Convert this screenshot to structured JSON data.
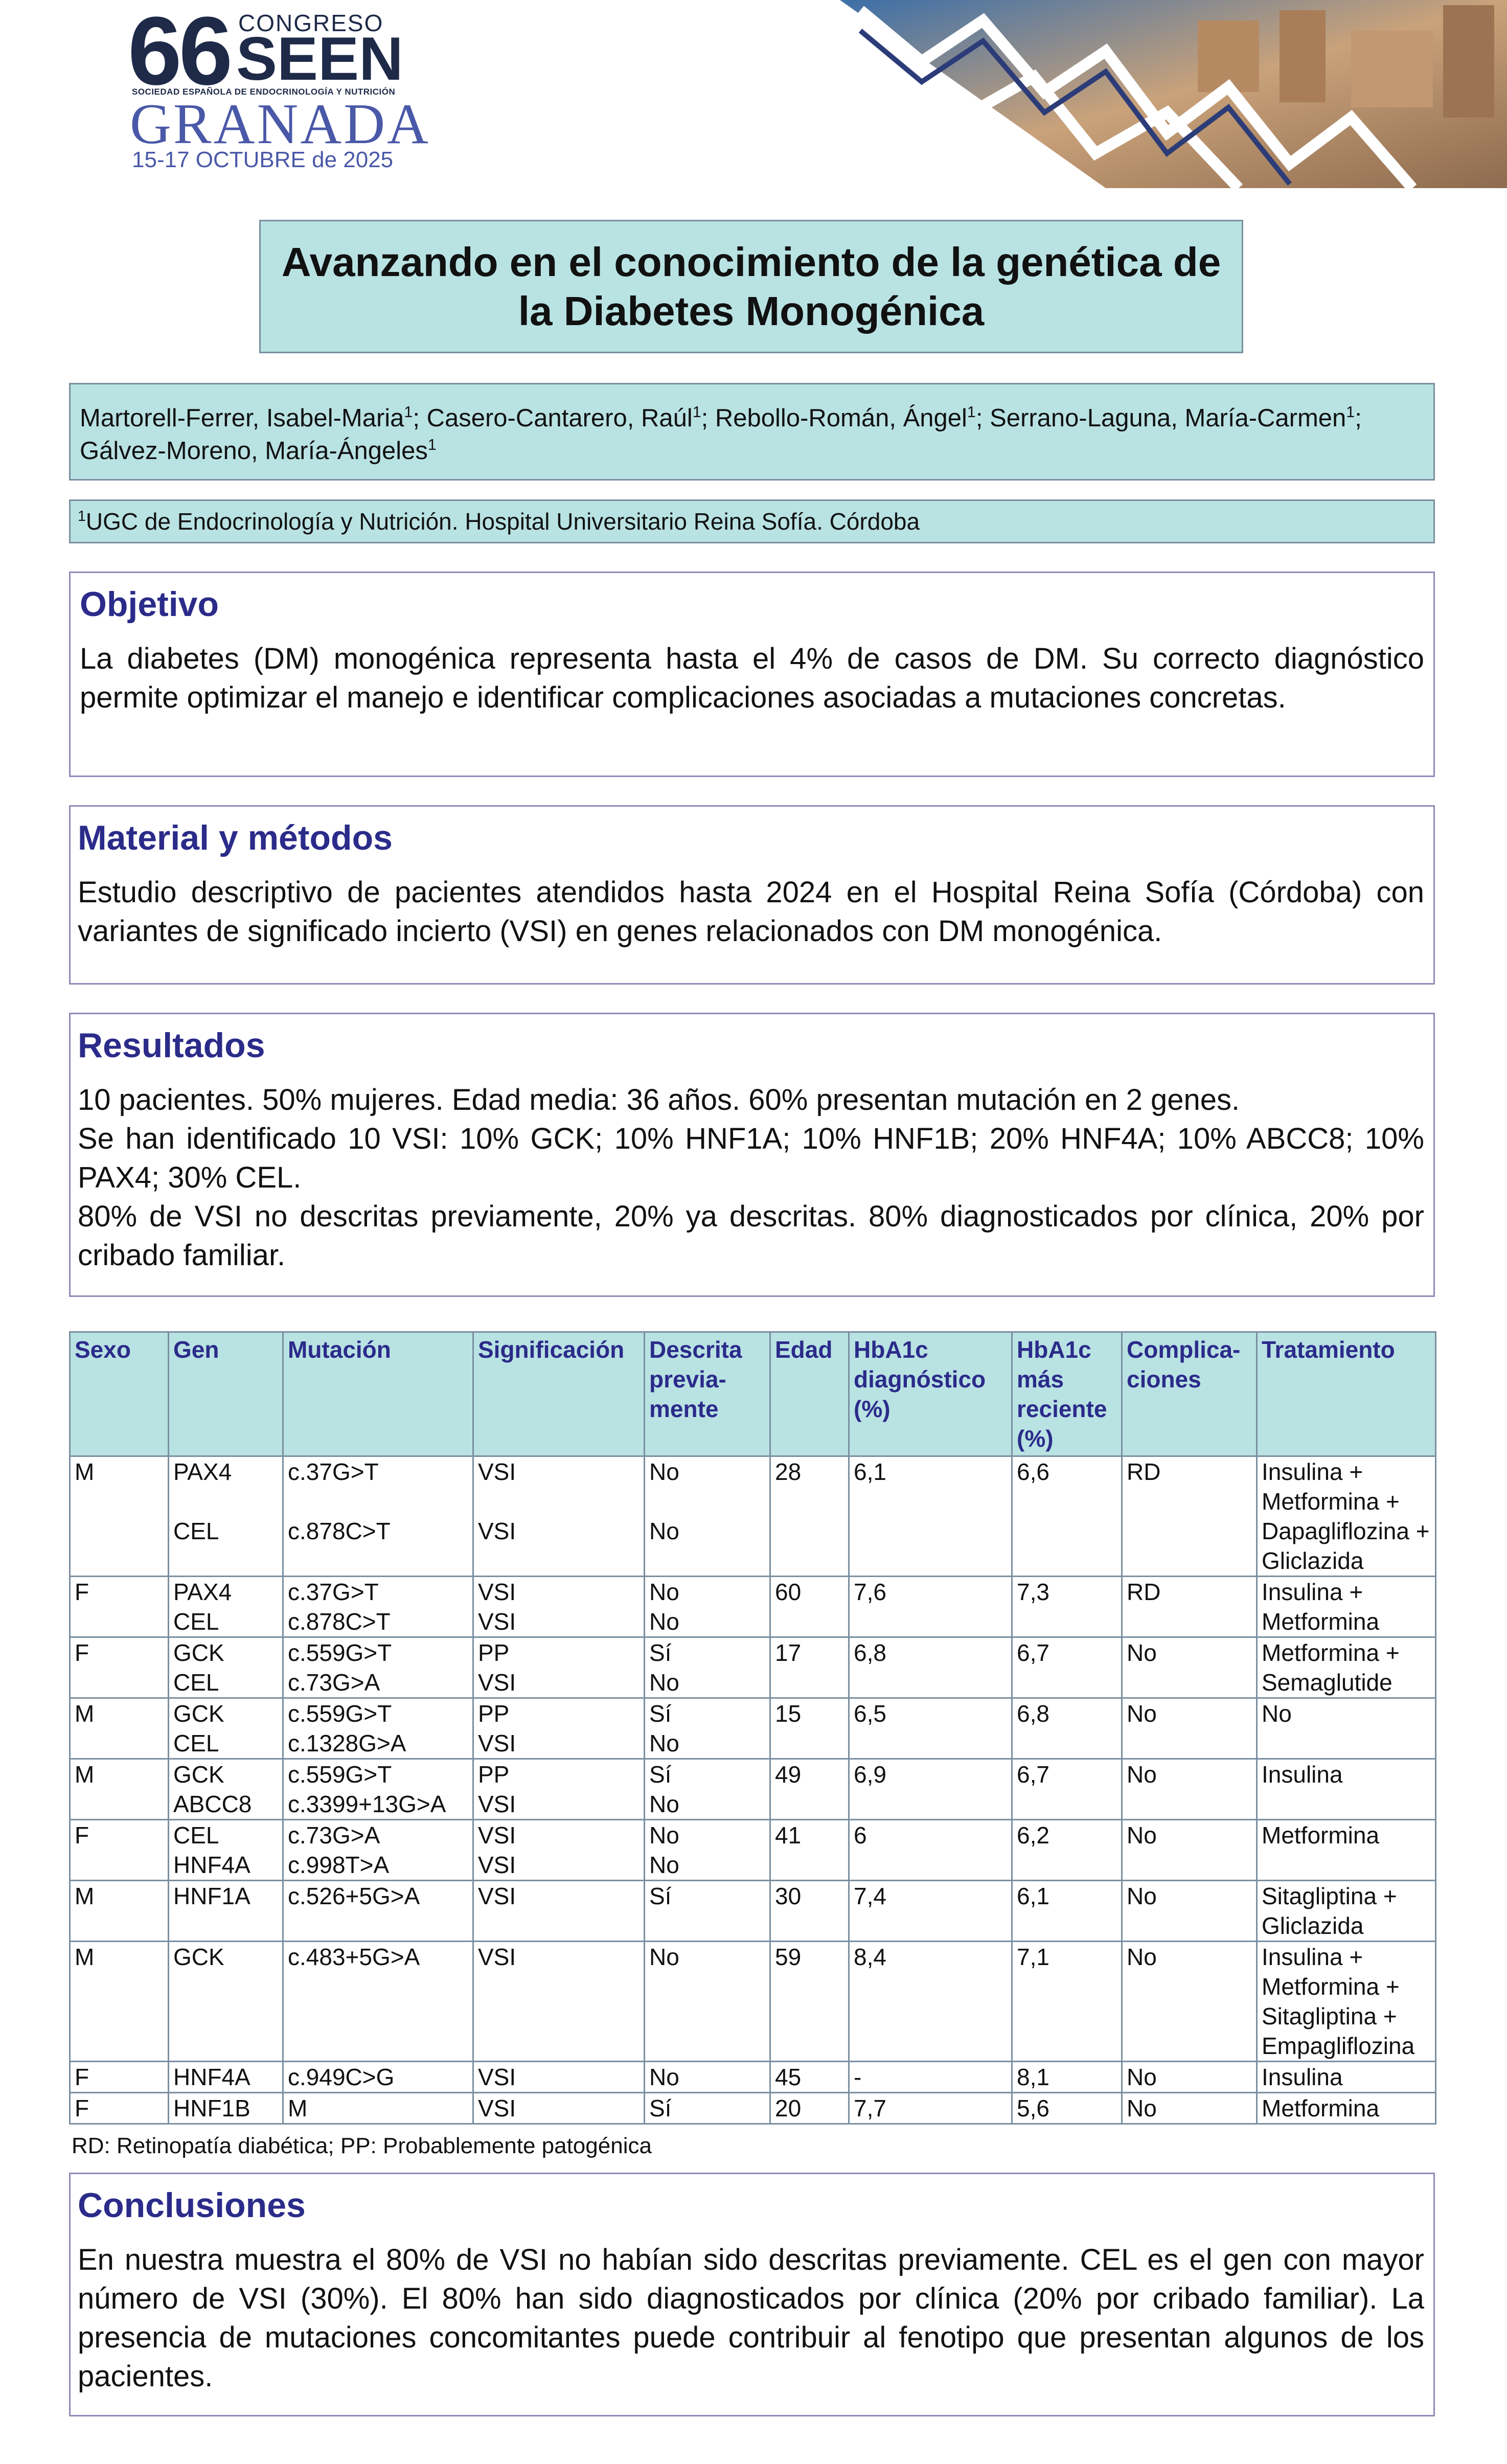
{
  "header": {
    "number": "66",
    "congress": "CONGRESO",
    "org": "SEEN",
    "society": "SOCIEDAD ESPAÑOLA DE ENDOCRINOLOGÍA Y NUTRICIÓN",
    "city": "GRANADA",
    "dates": "15-17 OCTUBRE de 2025"
  },
  "title": "Avanzando en el conocimiento de la genética de la Diabetes Monogénica",
  "authors": {
    "separator": ";",
    "list": [
      {
        "name": "Martorell-Ferrer, Isabel-Maria",
        "sup": "1"
      },
      {
        "name": "Casero-Cantarero, Raúl",
        "sup": "1"
      },
      {
        "name": "Rebollo-Román, Ángel",
        "sup": "1"
      },
      {
        "name": "Serrano-Laguna, María-Carmen",
        "sup": "1"
      },
      {
        "name": "Gálvez-Moreno, María-Ángeles",
        "sup": "1"
      }
    ]
  },
  "affiliation": {
    "sup": "1",
    "text": "UGC de Endocrinología y Nutrición. Hospital Universitario Reina Sofía. Córdoba"
  },
  "objetivo": {
    "heading": "Objetivo",
    "text": "La diabetes (DM) monogénica representa hasta el 4% de casos de DM. Su correcto diagnóstico permite optimizar el manejo e identificar complicaciones asociadas a mutaciones concretas."
  },
  "metodos": {
    "heading": "Material y métodos",
    "text": "Estudio descriptivo de pacientes atendidos hasta 2024 en el Hospital Reina Sofía (Córdoba) con variantes de significado incierto (VSI) en genes relacionados con DM monogénica."
  },
  "resultados": {
    "heading": "Resultados",
    "paragraphs": [
      "10 pacientes. 50% mujeres. Edad media: 36 años. 60% presentan mutación en 2 genes.",
      "Se han identificado 10 VSI: 10% GCK; 10% HNF1A; 10% HNF1B; 20% HNF4A; 10% ABCC8; 10% PAX4; 30% CEL.",
      "80% de VSI no descritas previamente, 20% ya descritas. 80% diagnosticados por clínica, 20% por cribado familiar."
    ]
  },
  "table": {
    "headers": [
      "Sexo",
      "Gen",
      "Mutación",
      "Significación",
      "Descrita previa­mente",
      "Edad",
      "HbA1c diagnóstico (%)",
      "HbA1c más reciente (%)",
      "Complica­ciones",
      "Tratamiento"
    ],
    "patients": [
      {
        "sexo": "M",
        "genes": [
          [
            "PAX4",
            "c.37G>T",
            "VSI",
            "No"
          ],
          [
            "CEL",
            "c.878C>T",
            "VSI",
            "No"
          ]
        ],
        "edad": "28",
        "dx": "6,1",
        "rec": "6,6",
        "comp": "RD",
        "trat": "Insulina + Metformina + Dapagliflozina + Gliclazida"
      },
      {
        "sexo": "F",
        "genes": [
          [
            "PAX4",
            "c.37G>T",
            "VSI",
            "No"
          ],
          [
            "CEL",
            "c.878C>T",
            "VSI",
            "No"
          ]
        ],
        "edad": "60",
        "dx": "7,6",
        "rec": "7,3",
        "comp": "RD",
        "trat": "Insulina + Metformina"
      },
      {
        "sexo": "F",
        "genes": [
          [
            "GCK",
            "c.559G>T",
            "PP",
            "Sí"
          ],
          [
            "CEL",
            "c.73G>A",
            "VSI",
            "No"
          ]
        ],
        "edad": "17",
        "dx": "6,8",
        "rec": "6,7",
        "comp": "No",
        "trat": "Metformina + Semaglutide"
      },
      {
        "sexo": "M",
        "genes": [
          [
            "GCK",
            "c.559G>T",
            "PP",
            "Sí"
          ],
          [
            "CEL",
            "c.1328G>A",
            "VSI",
            "No"
          ]
        ],
        "edad": "15",
        "dx": "6,5",
        "rec": "6,8",
        "comp": "No",
        "trat": "No"
      },
      {
        "sexo": "M",
        "genes": [
          [
            "GCK",
            "c.559G>T",
            "PP",
            "Sí"
          ],
          [
            "ABCC8",
            "c.3399+13G>A",
            "VSI",
            "No"
          ]
        ],
        "edad": "49",
        "dx": "6,9",
        "rec": "6,7",
        "comp": "No",
        "trat": "Insulina"
      },
      {
        "sexo": "F",
        "genes": [
          [
            "CEL",
            "c.73G>A",
            "VSI",
            "No"
          ],
          [
            "HNF4A",
            "c.998T>A",
            "VSI",
            "No"
          ]
        ],
        "edad": "41",
        "dx": "6",
        "rec": "6,2",
        "comp": "No",
        "trat": "Metformina"
      },
      {
        "sexo": "M",
        "genes": [
          [
            "HNF1A",
            "c.526+5G>A",
            "VSI",
            "Sí"
          ]
        ],
        "edad": "30",
        "dx": "7,4",
        "rec": "6,1",
        "comp": "No",
        "trat": "Sitagliptina + Gliclazida"
      },
      {
        "sexo": "M",
        "genes": [
          [
            "GCK",
            "c.483+5G>A",
            "VSI",
            "No"
          ]
        ],
        "edad": "59",
        "dx": "8,4",
        "rec": "7,1",
        "comp": "No",
        "trat": "Insulina + Metformina + Sitagliptina + Empagliflozina"
      },
      {
        "sexo": "F",
        "genes": [
          [
            "HNF4A",
            "c.949C>G",
            "VSI",
            "No"
          ]
        ],
        "edad": "45",
        "dx": "-",
        "rec": "8,1",
        "comp": "No",
        "trat": "Insulina"
      },
      {
        "sexo": "F",
        "genes": [
          [
            "HNF1B",
            "M",
            "VSI",
            "Sí"
          ]
        ],
        "edad": "20",
        "dx": "7,7",
        "rec": "5,6",
        "comp": "No",
        "trat": "Metformina"
      }
    ],
    "footnote": "RD: Retinopatía diabética; PP: Probablemente patogénica"
  },
  "conclusiones": {
    "heading": "Conclusiones",
    "text": "En nuestra muestra el 80% de VSI no habían sido descritas previamente. CEL es el gen con mayor número de VSI (30%). El 80% han sido diagnosticados por clínica (20% por cribado familiar). La presencia de mutaciones concomitantes puede contribuir al fenotipo que presentan algunos de los pacientes."
  }
}
